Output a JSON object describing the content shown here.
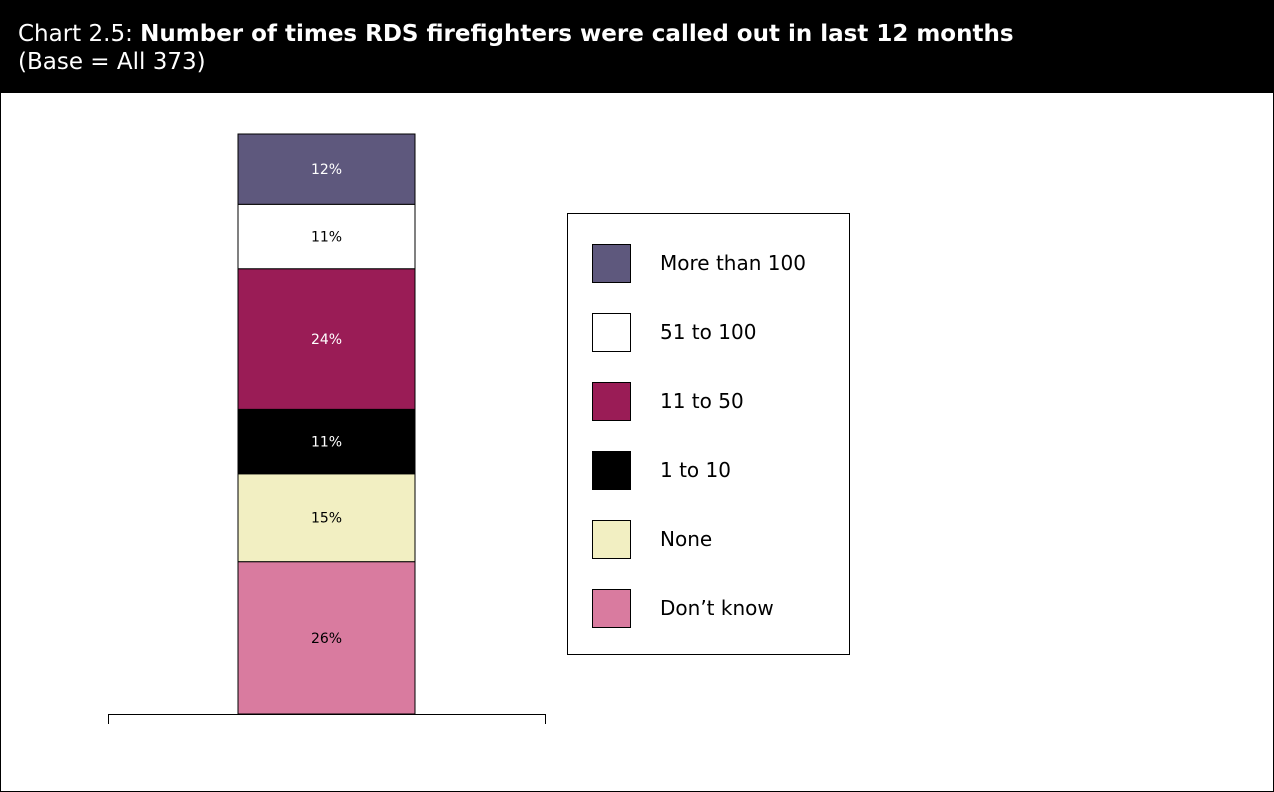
{
  "header": {
    "prefix": "Chart 2.5:",
    "title": "Number of times RDS firefighters were called out in last 12 months",
    "base": "(Base = All 373)"
  },
  "chart_data": {
    "type": "bar",
    "stacked": true,
    "title": "Number of times RDS firefighters were called out in last 12 months",
    "subtitle": "(Base = All 373)",
    "categories": [
      ""
    ],
    "series": [
      {
        "name": "Don’t know",
        "values": [
          26
        ],
        "label": "26%",
        "color": "#d97b9f"
      },
      {
        "name": "None",
        "values": [
          15
        ],
        "label": "15%",
        "color": "#f2efc2"
      },
      {
        "name": "1 to 10",
        "values": [
          11
        ],
        "label": "11%",
        "color": "#000000"
      },
      {
        "name": "11 to 50",
        "values": [
          24
        ],
        "label": "24%",
        "color": "#9a1c56"
      },
      {
        "name": "51 to 100",
        "values": [
          11
        ],
        "label": "11%",
        "color": "#ffffff"
      },
      {
        "name": "More than 100",
        "values": [
          12
        ],
        "label": "12%",
        "color": "#5e587d"
      }
    ],
    "legend_order": [
      "More than 100",
      "51 to 100",
      "11 to 50",
      "1 to 10",
      "None",
      "Don’t know"
    ],
    "legend_position": "right",
    "ylim": [
      0,
      99
    ],
    "grid": false
  }
}
